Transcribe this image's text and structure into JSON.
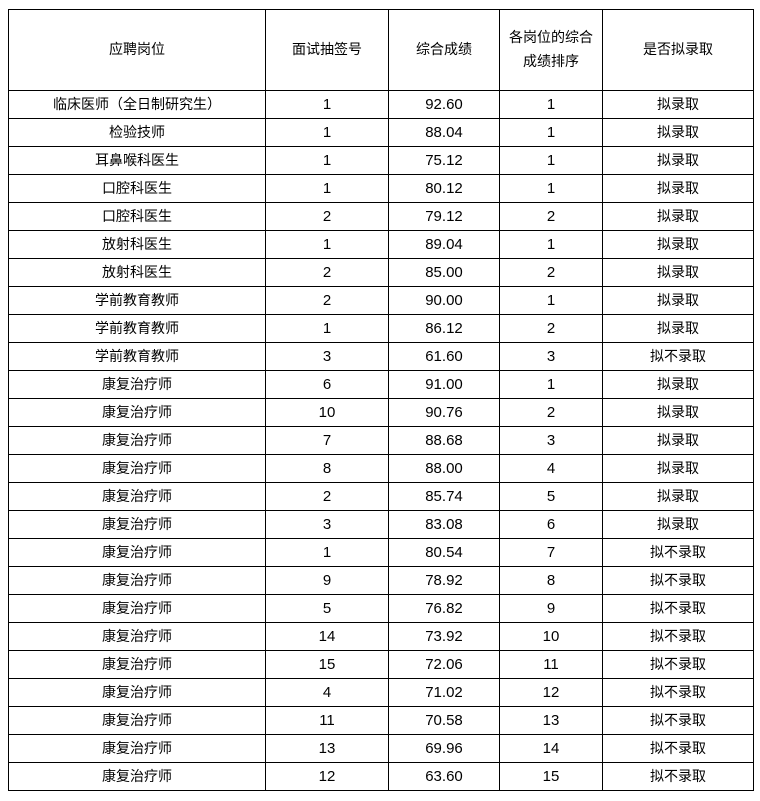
{
  "headers": [
    "应聘岗位",
    "面试抽签号",
    "综合成绩",
    "各岗位的综合成绩排序",
    "是否拟录取"
  ],
  "rows": [
    [
      "临床医师（全日制研究生）",
      "1",
      "92.60",
      "1",
      "拟录取"
    ],
    [
      "检验技师",
      "1",
      "88.04",
      "1",
      "拟录取"
    ],
    [
      "耳鼻喉科医生",
      "1",
      "75.12",
      "1",
      "拟录取"
    ],
    [
      "口腔科医生",
      "1",
      "80.12",
      "1",
      "拟录取"
    ],
    [
      "口腔科医生",
      "2",
      "79.12",
      "2",
      "拟录取"
    ],
    [
      "放射科医生",
      "1",
      "89.04",
      "1",
      "拟录取"
    ],
    [
      "放射科医生",
      "2",
      "85.00",
      "2",
      "拟录取"
    ],
    [
      "学前教育教师",
      "2",
      "90.00",
      "1",
      "拟录取"
    ],
    [
      "学前教育教师",
      "1",
      "86.12",
      "2",
      "拟录取"
    ],
    [
      "学前教育教师",
      "3",
      "61.60",
      "3",
      "拟不录取"
    ],
    [
      "康复治疗师",
      "6",
      "91.00",
      "1",
      "拟录取"
    ],
    [
      "康复治疗师",
      "10",
      "90.76",
      "2",
      "拟录取"
    ],
    [
      "康复治疗师",
      "7",
      "88.68",
      "3",
      "拟录取"
    ],
    [
      "康复治疗师",
      "8",
      "88.00",
      "4",
      "拟录取"
    ],
    [
      "康复治疗师",
      "2",
      "85.74",
      "5",
      "拟录取"
    ],
    [
      "康复治疗师",
      "3",
      "83.08",
      "6",
      "拟录取"
    ],
    [
      "康复治疗师",
      "1",
      "80.54",
      "7",
      "拟不录取"
    ],
    [
      "康复治疗师",
      "9",
      "78.92",
      "8",
      "拟不录取"
    ],
    [
      "康复治疗师",
      "5",
      "76.82",
      "9",
      "拟不录取"
    ],
    [
      "康复治疗师",
      "14",
      "73.92",
      "10",
      "拟不录取"
    ],
    [
      "康复治疗师",
      "15",
      "72.06",
      "11",
      "拟不录取"
    ],
    [
      "康复治疗师",
      "4",
      "71.02",
      "12",
      "拟不录取"
    ],
    [
      "康复治疗师",
      "11",
      "70.58",
      "13",
      "拟不录取"
    ],
    [
      "康复治疗师",
      "13",
      "69.96",
      "14",
      "拟不录取"
    ],
    [
      "康复治疗师",
      "12",
      "63.60",
      "15",
      "拟不录取"
    ]
  ]
}
